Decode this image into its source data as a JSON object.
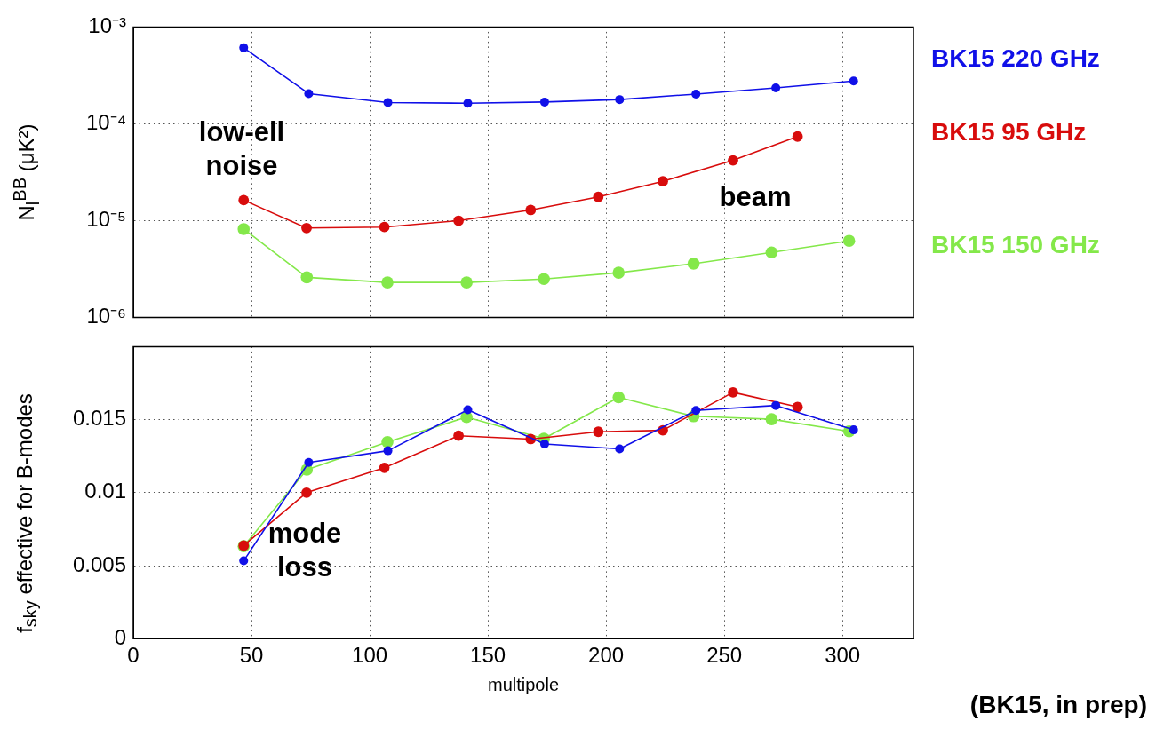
{
  "chart_data": [
    {
      "type": "line",
      "ylabel": "N$_{l}$$^{BB}$ (μK²)",
      "log": "y",
      "xlim": [
        0,
        330
      ],
      "xticks": [
        0,
        50,
        100,
        150,
        200,
        250,
        300
      ],
      "ylim": [
        1e-06,
        0.001
      ],
      "yticks": [
        {
          "value": 1e-06,
          "label": "10⁻⁶"
        },
        {
          "value": 1e-05,
          "label": "10⁻⁵"
        },
        {
          "value": 0.0001,
          "label": "10⁻⁴"
        },
        {
          "value": 0.001,
          "label": "10⁻³"
        }
      ],
      "tick_labels": "y",
      "grid": true,
      "legend": "right",
      "marker": "circle",
      "line_style": "solid",
      "annotations": [
        "low-ell noise",
        "beam"
      ],
      "series": [
        {
          "name": "BK15 220 GHz",
          "color": "#1010e8",
          "x": [
            46.7,
            74.2,
            107.7,
            141.5,
            174,
            205.7,
            238,
            271.8,
            304.7
          ],
          "values": [
            0.00061,
            0.000205,
            0.000166,
            0.000163,
            0.000168,
            0.000178,
            0.000203,
            0.000235,
            0.000277
          ]
        },
        {
          "name": "BK15 95 GHz",
          "color": "#d80c0c",
          "x": [
            46.7,
            73.3,
            106.2,
            137.6,
            168.1,
            196.7,
            224,
            253.7,
            281
          ],
          "values": [
            1.63e-05,
            8.4e-06,
            8.6e-06,
            1e-05,
            1.29e-05,
            1.76e-05,
            2.55e-05,
            4.2e-05,
            7.4e-05
          ]
        },
        {
          "name": "BK15 150 GHz",
          "color": "#84e84a",
          "x": [
            46.7,
            73.4,
            107.5,
            141,
            173.7,
            205.3,
            237,
            270,
            302.8
          ],
          "values": [
            8.2e-06,
            2.6e-06,
            2.3e-06,
            2.3e-06,
            2.5e-06,
            2.9e-06,
            3.6e-06,
            4.7e-06,
            6.2e-06
          ]
        }
      ]
    },
    {
      "type": "line",
      "xlabel": "multipole",
      "ylabel": "f$_{sky}$ effective for B-modes",
      "xlim": [
        0,
        330
      ],
      "xticks": [
        0,
        50,
        100,
        150,
        200,
        250,
        300
      ],
      "ylim": [
        0,
        0.02
      ],
      "yticks": [
        0,
        0.005,
        0.01,
        0.015
      ],
      "grid": true,
      "marker": "circle",
      "line_style": "solid",
      "annotations": [
        "mode loss",
        "(BK15, in prep)"
      ],
      "series": [
        {
          "color": "#1010e8",
          "x": [
            46.7,
            74.2,
            107.7,
            141.5,
            174,
            205.7,
            238,
            271.8,
            304.7
          ],
          "values": [
            0.00533,
            0.01207,
            0.01287,
            0.01567,
            0.01333,
            0.013,
            0.01563,
            0.01597,
            0.0143
          ]
        },
        {
          "color": "#d80c0c",
          "x": [
            46.7,
            73.3,
            106.2,
            137.6,
            168.1,
            196.7,
            224,
            253.7,
            281
          ],
          "values": [
            0.00637,
            0.01,
            0.0117,
            0.0139,
            0.01367,
            0.01417,
            0.01427,
            0.01687,
            0.01587
          ]
        },
        {
          "color": "#84e84a",
          "x": [
            46.7,
            73.4,
            107.5,
            141,
            173.7,
            205.3,
            237,
            270,
            302.8
          ],
          "values": [
            0.00633,
            0.01157,
            0.01347,
            0.01517,
            0.0137,
            0.01653,
            0.01523,
            0.01503,
            0.0142
          ]
        }
      ]
    }
  ]
}
